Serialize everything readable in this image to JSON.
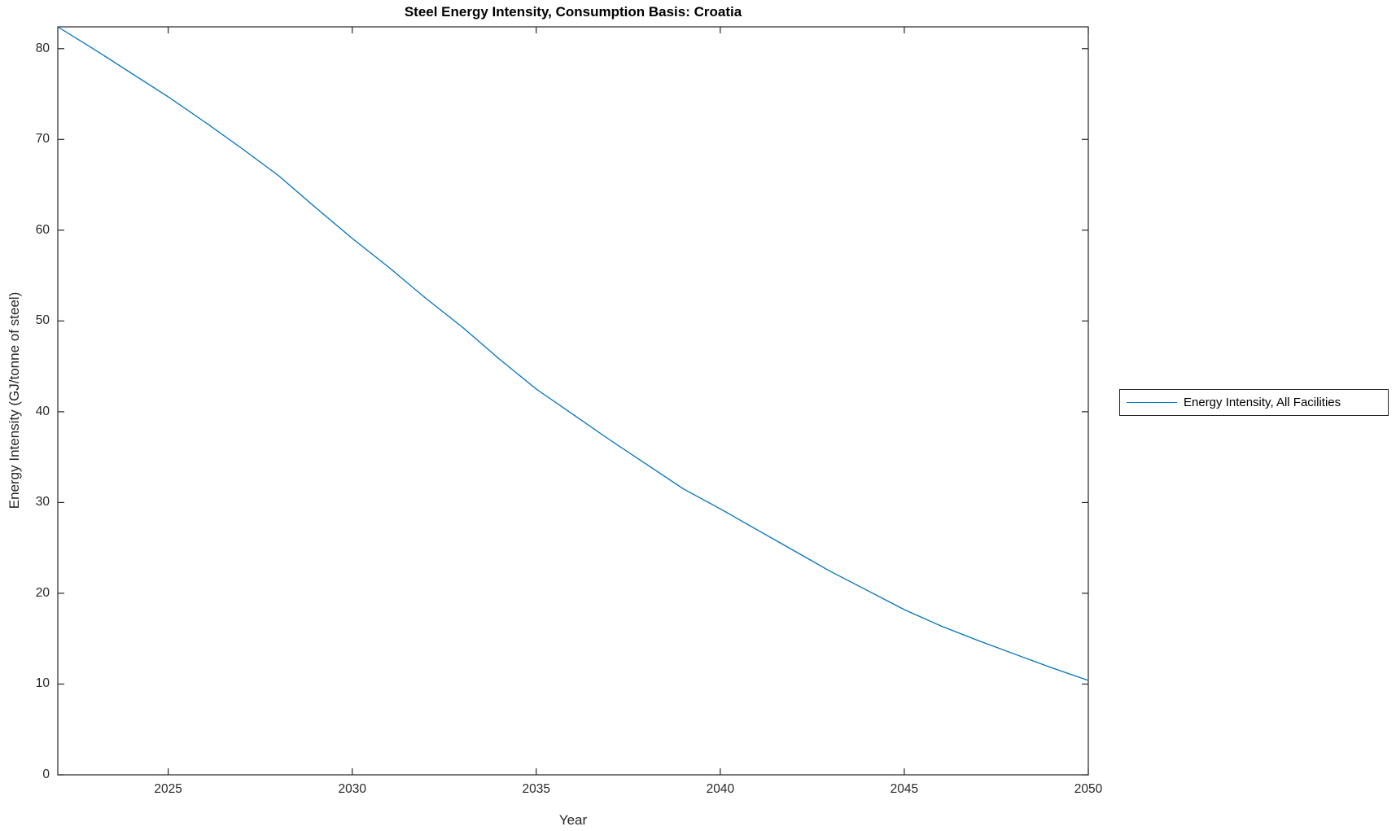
{
  "colors": {
    "accent": "#0072BD",
    "axis": "#262626",
    "background": "#ffffff"
  },
  "legend": {
    "label": "Energy Intensity, All Facilities"
  },
  "chart_data": {
    "type": "line",
    "title": "Steel Energy Intensity, Consumption Basis: Croatia",
    "xlabel": "Year",
    "ylabel": "Energy Intensity (GJ/tonne of steel)",
    "xlim": [
      2022,
      2050
    ],
    "ylim": [
      0,
      82.4
    ],
    "xticks": [
      2025,
      2030,
      2035,
      2040,
      2045,
      2050
    ],
    "yticks": [
      0,
      10,
      20,
      30,
      40,
      50,
      60,
      70,
      80
    ],
    "grid": false,
    "legend_position": "right-outside",
    "series": [
      {
        "name": "Energy Intensity, All Facilities",
        "color": "#0072BD",
        "x": [
          2022,
          2023,
          2024,
          2025,
          2026,
          2027,
          2028,
          2029,
          2030,
          2031,
          2032,
          2033,
          2034,
          2035,
          2036,
          2037,
          2038,
          2039,
          2040,
          2041,
          2042,
          2043,
          2044,
          2045,
          2046,
          2047,
          2048,
          2049,
          2050
        ],
        "values": [
          82.4,
          79.9,
          77.3,
          74.7,
          71.9,
          69.0,
          66.0,
          62.5,
          59.1,
          55.9,
          52.5,
          49.3,
          45.8,
          42.5,
          39.7,
          36.9,
          34.2,
          31.5,
          29.3,
          27.0,
          24.7,
          22.4,
          20.3,
          18.2,
          16.4,
          14.8,
          13.3,
          11.8,
          10.4
        ]
      }
    ]
  }
}
